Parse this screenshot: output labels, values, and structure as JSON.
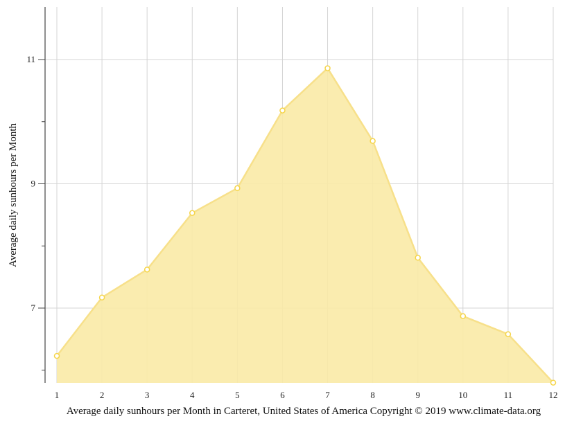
{
  "chart_data": {
    "type": "area",
    "title": "",
    "caption": "Average daily sunhours per Month in Carteret, United States of America Copyright © 2019 www.climate-data.org",
    "xlabel": "",
    "ylabel": "Average daily sunhours per Month",
    "categories": [
      "1",
      "2",
      "3",
      "4",
      "5",
      "6",
      "7",
      "8",
      "9",
      "10",
      "11",
      "12"
    ],
    "series": [
      {
        "name": "Average daily sunhours",
        "values": [
          6.23,
          7.17,
          7.62,
          8.53,
          8.93,
          10.18,
          10.86,
          9.69,
          7.81,
          6.87,
          6.58,
          5.8
        ],
        "fill_color": "#f9eaa6",
        "line_color": "#f7e08a",
        "marker_color": "#f5d54a"
      }
    ],
    "yticks_major": [
      7,
      9,
      11
    ],
    "yticks_minor": [
      6,
      8,
      10
    ],
    "ylim": [
      5.8,
      11.85
    ],
    "xlim": [
      1,
      12
    ],
    "grid": true,
    "legend": "none"
  },
  "colors": {
    "grid": "#d4d4d4",
    "axis": "#444444",
    "fill": "#f9eaa6",
    "line": "#f7e08a",
    "marker": "#f5d54a"
  }
}
